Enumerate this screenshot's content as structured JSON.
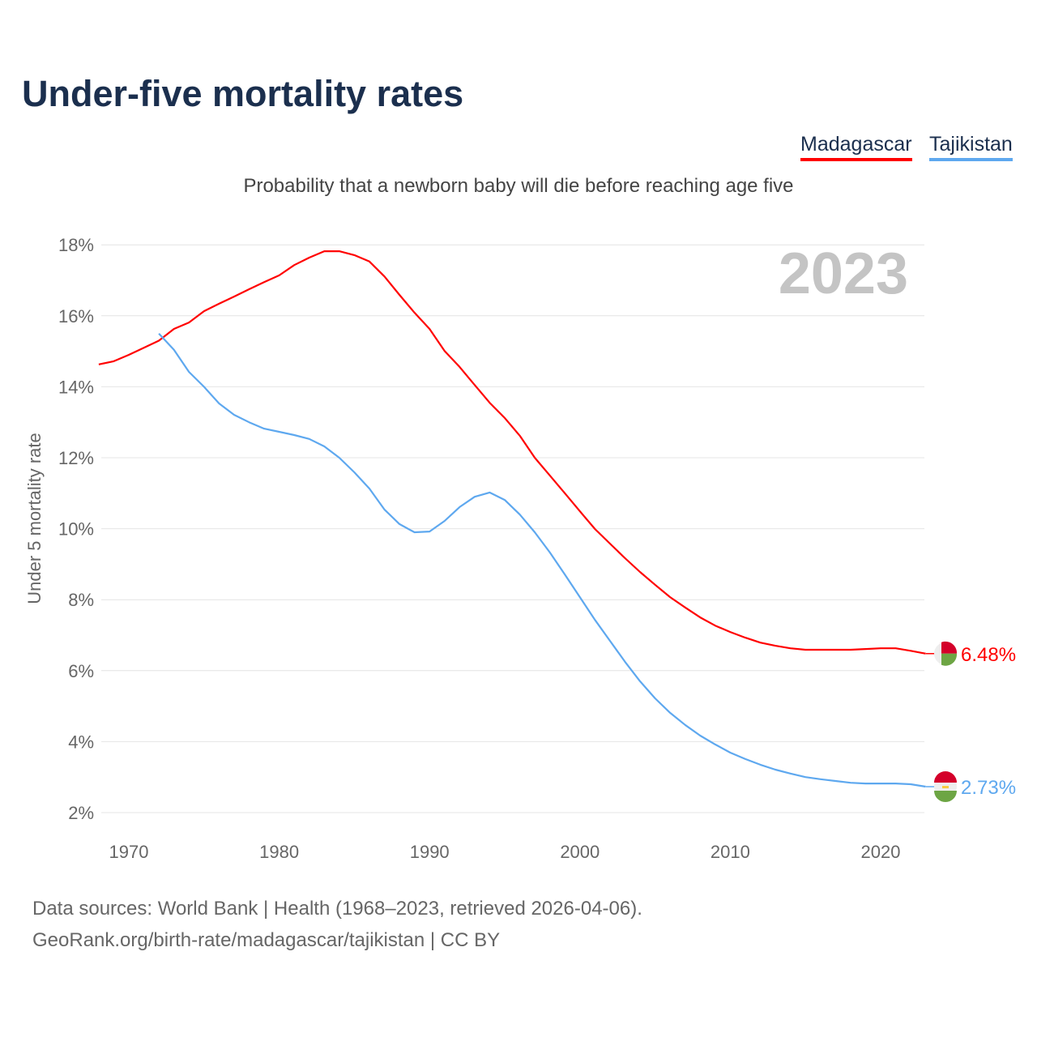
{
  "header": {
    "title": "Under-five mortality rates",
    "subtitle": "Probability that a newborn baby will die before reaching age five"
  },
  "footer": {
    "sources": "Data sources: World Bank | Health (1968–2023, retrieved 2026-04-06).",
    "link": "GeoRank.org/birth-rate/madagascar/tajikistan | CC BY"
  },
  "chart_data": {
    "type": "line",
    "title": "Under-five mortality rates",
    "ylabel": "Under 5 mortality rate",
    "year_label": "2023",
    "ylim": [
      2,
      18
    ],
    "xlim": [
      1968,
      2023
    ],
    "yticks": [
      "2%",
      "4%",
      "6%",
      "8%",
      "10%",
      "12%",
      "14%",
      "16%",
      "18%"
    ],
    "ytick_values": [
      2,
      4,
      6,
      8,
      10,
      12,
      14,
      16,
      18
    ],
    "xticks": [
      "1970",
      "1980",
      "1990",
      "2000",
      "2010",
      "2020"
    ],
    "xtick_values": [
      1970,
      1980,
      1990,
      2000,
      2010,
      2020
    ],
    "grid": true,
    "legend_placement": "top-right",
    "series": [
      {
        "name": "Madagascar",
        "color": "#ff0000",
        "end_label": "6.48%",
        "start_year": 1968,
        "values": [
          14.63,
          14.72,
          14.9,
          15.1,
          15.3,
          15.63,
          15.81,
          16.13,
          16.34,
          16.54,
          16.75,
          16.95,
          17.14,
          17.43,
          17.64,
          17.82,
          17.82,
          17.71,
          17.53,
          17.11,
          16.59,
          16.09,
          15.63,
          15.01,
          14.56,
          14.05,
          13.55,
          13.12,
          12.62,
          12.0,
          11.5,
          11.0,
          10.49,
          9.99,
          9.58,
          9.17,
          8.78,
          8.42,
          8.07,
          7.78,
          7.5,
          7.27,
          7.09,
          6.93,
          6.79,
          6.7,
          6.63,
          6.59,
          6.59,
          6.59,
          6.59,
          6.61,
          6.63,
          6.63,
          6.56,
          6.48
        ]
      },
      {
        "name": "Tajikistan",
        "color": "#5ea8ef",
        "end_label": "2.73%",
        "start_year": 1972,
        "values": [
          15.5,
          15.04,
          14.42,
          14.0,
          13.53,
          13.21,
          13.0,
          12.82,
          12.73,
          12.64,
          12.53,
          12.32,
          12.0,
          11.59,
          11.13,
          10.54,
          10.13,
          9.9,
          9.92,
          10.22,
          10.61,
          10.9,
          11.02,
          10.81,
          10.4,
          9.9,
          9.33,
          8.71,
          8.07,
          7.43,
          6.84,
          6.25,
          5.7,
          5.22,
          4.81,
          4.47,
          4.17,
          3.92,
          3.69,
          3.51,
          3.35,
          3.21,
          3.1,
          3.0,
          2.94,
          2.89,
          2.84,
          2.82,
          2.82,
          2.82,
          2.8,
          2.73
        ]
      }
    ]
  }
}
